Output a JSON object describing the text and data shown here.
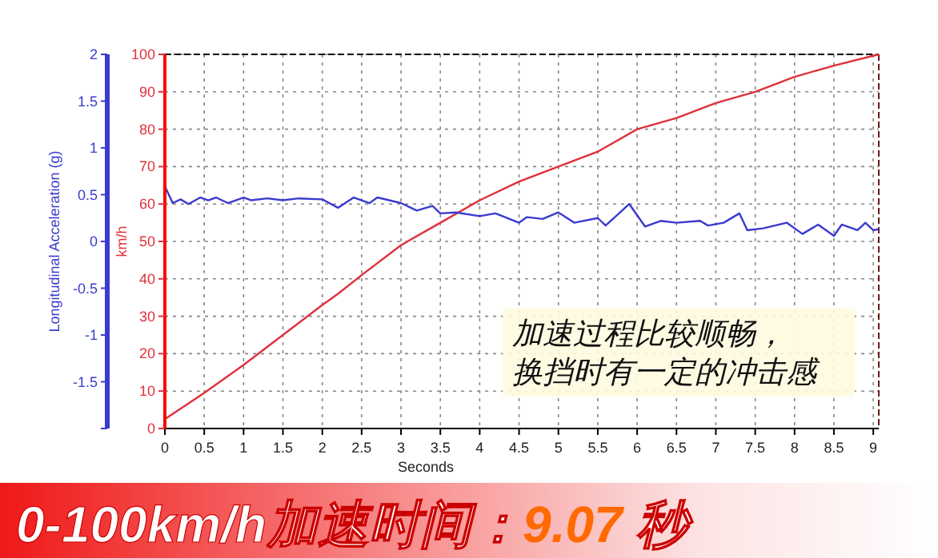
{
  "chart_data": {
    "type": "line",
    "title": "0-100km/h加速时间：9.07 秒",
    "xlabel": "Seconds",
    "ylabel": "km/h",
    "y2label": "Longitudinal Acceleration (g)",
    "annotations": [
      "加速过程比较顺畅，",
      "换挡时有一定的冲击感"
    ],
    "xlim": [
      0,
      9.07
    ],
    "xticks": [
      0,
      0.5,
      1,
      1.5,
      2,
      2.5,
      3,
      3.5,
      4,
      4.5,
      5,
      5.5,
      6,
      6.5,
      7,
      7.5,
      8,
      8.5,
      9
    ],
    "ylim": [
      0,
      100
    ],
    "yticks": [
      0,
      10,
      20,
      30,
      40,
      50,
      60,
      70,
      80,
      90,
      100
    ],
    "y2lim": [
      -2,
      2
    ],
    "y2ticks": [
      {
        "value": -2,
        "label": null
      },
      -1.5,
      -1,
      -0.5,
      0,
      0.5,
      1,
      1.5,
      2
    ],
    "grid": true,
    "series": [
      {
        "color": "#e0303a",
        "x": [
          0,
          0.5,
          1,
          1.5,
          2,
          2.2,
          2.5,
          3,
          3.5,
          4,
          4.5,
          5,
          5.5,
          6,
          6.5,
          7,
          7.5,
          8,
          8.5,
          9.07
        ],
        "values": [
          2.5,
          9.5,
          17,
          25,
          33,
          36,
          41,
          49,
          55,
          61,
          66,
          70,
          74,
          80,
          83,
          87,
          90,
          94,
          97,
          100
        ]
      },
      {
        "color": "#3a3ad0",
        "axis": "y2",
        "x": [
          0,
          0.1,
          0.2,
          0.3,
          0.45,
          0.55,
          0.65,
          0.8,
          1,
          1.1,
          1.3,
          1.5,
          1.7,
          2,
          2.2,
          2.4,
          2.6,
          2.7,
          3,
          3.2,
          3.4,
          3.5,
          3.7,
          4,
          4.2,
          4.5,
          4.6,
          4.8,
          5,
          5.2,
          5.5,
          5.6,
          5.9,
          6.1,
          6.3,
          6.5,
          6.8,
          6.9,
          7.1,
          7.3,
          7.4,
          7.6,
          7.9,
          8.1,
          8.3,
          8.4,
          8.5,
          8.6,
          8.8,
          8.9,
          9,
          9.07
        ],
        "values": [
          0.59,
          0.41,
          0.45,
          0.4,
          0.47,
          0.44,
          0.47,
          0.41,
          0.47,
          0.44,
          0.46,
          0.44,
          0.46,
          0.45,
          0.36,
          0.47,
          0.41,
          0.47,
          0.41,
          0.33,
          0.38,
          0.3,
          0.31,
          0.27,
          0.3,
          0.2,
          0.26,
          0.24,
          0.31,
          0.2,
          0.25,
          0.17,
          0.4,
          0.16,
          0.22,
          0.2,
          0.22,
          0.17,
          0.2,
          0.3,
          0.12,
          0.14,
          0.2,
          0.08,
          0.18,
          0.12,
          0.06,
          0.18,
          0.12,
          0.2,
          0.12,
          0.13
        ]
      }
    ]
  }
}
